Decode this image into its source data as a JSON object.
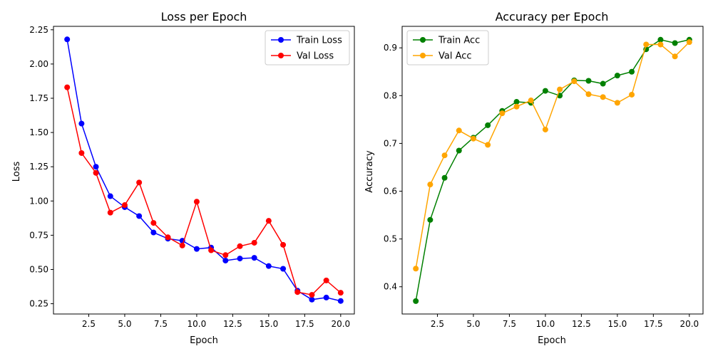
{
  "chart_data": [
    {
      "type": "line",
      "title": "Loss per Epoch",
      "xlabel": "Epoch",
      "ylabel": "Loss",
      "xlim": [
        0.05,
        20.95
      ],
      "ylim": [
        0.175,
        2.275
      ],
      "xticks": [
        2.5,
        5.0,
        7.5,
        10.0,
        12.5,
        15.0,
        17.5,
        20.0
      ],
      "xtick_labels": [
        "2.5",
        "5.0",
        "7.5",
        "10.0",
        "12.5",
        "15.0",
        "17.5",
        "20.0"
      ],
      "yticks": [
        0.25,
        0.5,
        0.75,
        1.0,
        1.25,
        1.5,
        1.75,
        2.0,
        2.25
      ],
      "ytick_labels": [
        "0.25",
        "0.50",
        "0.75",
        "1.00",
        "1.25",
        "1.50",
        "1.75",
        "2.00",
        "2.25"
      ],
      "grid": false,
      "legend": "upper-right",
      "x": [
        1,
        2,
        3,
        4,
        5,
        6,
        7,
        8,
        9,
        10,
        11,
        12,
        13,
        14,
        15,
        16,
        17,
        18,
        19,
        20
      ],
      "series": [
        {
          "name": "Train Loss",
          "color": "#0000ff",
          "values": [
            2.18,
            1.565,
            1.25,
            1.035,
            0.955,
            0.89,
            0.77,
            0.725,
            0.71,
            0.65,
            0.66,
            0.565,
            0.58,
            0.585,
            0.525,
            0.505,
            0.345,
            0.28,
            0.295,
            0.27
          ]
        },
        {
          "name": "Val Loss",
          "color": "#ff0000",
          "values": [
            1.83,
            1.35,
            1.205,
            0.915,
            0.97,
            1.135,
            0.84,
            0.735,
            0.675,
            0.995,
            0.64,
            0.605,
            0.67,
            0.695,
            0.855,
            0.68,
            0.335,
            0.315,
            0.42,
            0.33
          ]
        }
      ]
    },
    {
      "type": "line",
      "title": "Accuracy per Epoch",
      "xlabel": "Epoch",
      "ylabel": "Accuracy",
      "xlim": [
        0.05,
        20.95
      ],
      "ylim": [
        0.343,
        0.945
      ],
      "xticks": [
        2.5,
        5.0,
        7.5,
        10.0,
        12.5,
        15.0,
        17.5,
        20.0
      ],
      "xtick_labels": [
        "2.5",
        "5.0",
        "7.5",
        "10.0",
        "12.5",
        "15.0",
        "17.5",
        "20.0"
      ],
      "yticks": [
        0.4,
        0.5,
        0.6,
        0.7,
        0.8,
        0.9
      ],
      "ytick_labels": [
        "0.4",
        "0.5",
        "0.6",
        "0.7",
        "0.8",
        "0.9"
      ],
      "grid": false,
      "legend": "upper-left",
      "x": [
        1,
        2,
        3,
        4,
        5,
        6,
        7,
        8,
        9,
        10,
        11,
        12,
        13,
        14,
        15,
        16,
        17,
        18,
        19,
        20
      ],
      "series": [
        {
          "name": "Train Acc",
          "color": "#008000",
          "values": [
            0.37,
            0.54,
            0.628,
            0.685,
            0.712,
            0.738,
            0.768,
            0.787,
            0.785,
            0.81,
            0.8,
            0.832,
            0.831,
            0.825,
            0.842,
            0.85,
            0.897,
            0.917,
            0.91,
            0.917
          ]
        },
        {
          "name": "Val Acc",
          "color": "#ffa500",
          "values": [
            0.438,
            0.614,
            0.675,
            0.727,
            0.71,
            0.697,
            0.763,
            0.777,
            0.79,
            0.729,
            0.813,
            0.83,
            0.803,
            0.797,
            0.785,
            0.802,
            0.907,
            0.907,
            0.882,
            0.912
          ]
        }
      ]
    }
  ]
}
